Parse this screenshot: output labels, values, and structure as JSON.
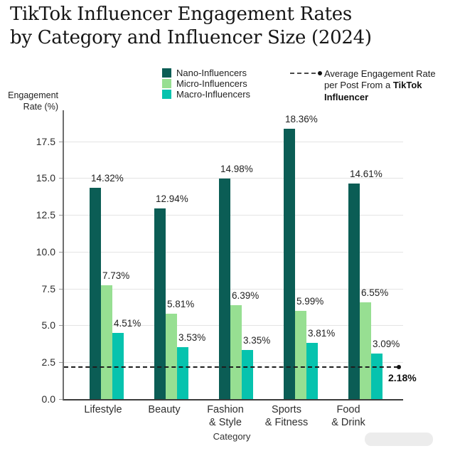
{
  "title": {
    "line1": "TikTok Influencer Engagement Rates",
    "line2": "by Category and Influencer Size (2024)"
  },
  "legend": {
    "average": {
      "line1": "Average Engagement Rate",
      "line2_pre": "per Post From a ",
      "line2_bold": "TikTok",
      "line3_bold": "Influencer"
    }
  },
  "axes": {
    "ylabel_line1": "Engagement",
    "ylabel_line2": "Rate (%)",
    "xlabel": "Category"
  },
  "chart_data": {
    "type": "bar",
    "title": "TikTok Influencer Engagement Rates by Category and Influencer Size (2024)",
    "categories": [
      "Lifestyle",
      "Beauty",
      "Fashion\n& Style",
      "Sports\n& Fitness",
      "Food\n& Drink"
    ],
    "series": [
      {
        "name": "Nano-Influencers",
        "color": "#0b5d55",
        "values": [
          14.32,
          12.94,
          14.98,
          18.36,
          14.61
        ]
      },
      {
        "name": "Micro-Influencers",
        "color": "#97df92",
        "values": [
          7.73,
          5.81,
          6.39,
          5.99,
          6.55
        ]
      },
      {
        "name": "Macro-Influencers",
        "color": "#06c3ae",
        "values": [
          4.51,
          3.53,
          3.35,
          3.81,
          3.09
        ]
      }
    ],
    "average_line": {
      "value": 2.18,
      "label": "2.18%",
      "legend_label": "Average Engagement Rate per Post From a TikTok Influencer"
    },
    "xlabel": "Category",
    "ylabel": "Engagement Rate (%)",
    "y_ticks": [
      0.0,
      2.5,
      5.0,
      7.5,
      10.0,
      12.5,
      15.0,
      17.5
    ],
    "ylim": [
      0,
      19.6
    ],
    "grid": "horizontal",
    "legend_position": "top",
    "value_labels": true,
    "value_label_format": "{value}%"
  }
}
